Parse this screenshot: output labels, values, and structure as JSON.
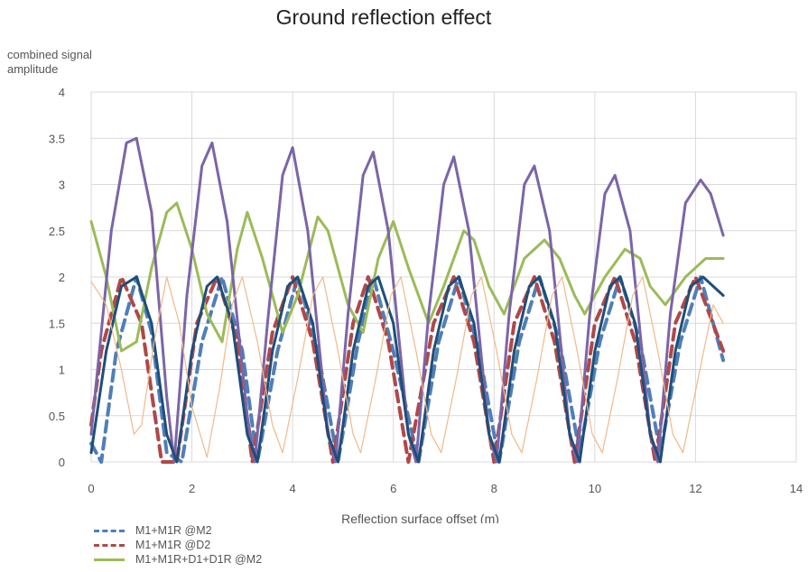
{
  "chart_data": {
    "type": "line",
    "title": "Ground reflection effect",
    "xlabel": "Reflection surface offset (m)",
    "ylabel": "combined signal amplitude",
    "xlim": [
      0,
      14
    ],
    "ylim": [
      0,
      4
    ],
    "xticks": [
      "0",
      "2",
      "4",
      "6",
      "8",
      "10",
      "12",
      "14"
    ],
    "yticks": [
      "0",
      "0.5",
      "1",
      "1.5",
      "2",
      "2.5",
      "3",
      "3.5",
      "4"
    ],
    "grid": true,
    "legend_position": "bottom-left",
    "series": [
      {
        "name": "M1+M1R @M2",
        "color": "#4f7fb8",
        "style": "dashed",
        "points": [
          [
            0.0,
            0.2
          ],
          [
            0.2,
            0.0
          ],
          [
            0.5,
            1.2
          ],
          [
            0.9,
            2.0
          ],
          [
            1.2,
            1.4
          ],
          [
            1.5,
            0.1
          ],
          [
            1.8,
            0.0
          ],
          [
            2.2,
            1.3
          ],
          [
            2.6,
            2.0
          ],
          [
            3.0,
            1.2
          ],
          [
            3.3,
            0.0
          ],
          [
            3.7,
            1.2
          ],
          [
            4.1,
            2.0
          ],
          [
            4.5,
            1.2
          ],
          [
            4.9,
            0.0
          ],
          [
            5.3,
            1.3
          ],
          [
            5.6,
            2.0
          ],
          [
            6.0,
            1.2
          ],
          [
            6.5,
            0.0
          ],
          [
            6.9,
            1.3
          ],
          [
            7.3,
            2.0
          ],
          [
            7.7,
            1.2
          ],
          [
            8.1,
            0.0
          ],
          [
            8.5,
            1.3
          ],
          [
            8.9,
            2.0
          ],
          [
            9.3,
            1.3
          ],
          [
            9.7,
            0.1
          ],
          [
            10.1,
            1.3
          ],
          [
            10.5,
            2.0
          ],
          [
            10.9,
            1.3
          ],
          [
            11.3,
            0.1
          ],
          [
            11.7,
            1.3
          ],
          [
            12.1,
            2.0
          ],
          [
            12.55,
            1.1
          ]
        ]
      },
      {
        "name": "M1+M1R @D2",
        "color": "#b04848",
        "style": "dashed",
        "points": [
          [
            0.0,
            0.4
          ],
          [
            0.2,
            1.2
          ],
          [
            0.6,
            2.0
          ],
          [
            1.0,
            1.5
          ],
          [
            1.4,
            0.0
          ],
          [
            1.7,
            0.0
          ],
          [
            2.1,
            1.5
          ],
          [
            2.5,
            2.0
          ],
          [
            2.9,
            1.3
          ],
          [
            3.2,
            0.0
          ],
          [
            3.6,
            1.4
          ],
          [
            4.0,
            2.0
          ],
          [
            4.4,
            1.3
          ],
          [
            4.8,
            0.0
          ],
          [
            5.2,
            1.5
          ],
          [
            5.5,
            2.0
          ],
          [
            5.9,
            1.3
          ],
          [
            6.3,
            0.0
          ],
          [
            6.8,
            1.5
          ],
          [
            7.2,
            2.0
          ],
          [
            7.6,
            1.3
          ],
          [
            8.0,
            0.0
          ],
          [
            8.4,
            1.5
          ],
          [
            8.8,
            2.0
          ],
          [
            9.2,
            1.3
          ],
          [
            9.6,
            0.0
          ],
          [
            10.0,
            1.5
          ],
          [
            10.4,
            2.0
          ],
          [
            10.8,
            1.3
          ],
          [
            11.2,
            0.0
          ],
          [
            11.6,
            1.5
          ],
          [
            12.0,
            2.0
          ],
          [
            12.55,
            1.2
          ]
        ]
      },
      {
        "name": "M1+M1R+D1+D1R @M2",
        "color": "#9bbb59",
        "style": "solid",
        "points": [
          [
            0.0,
            2.6
          ],
          [
            0.3,
            2.0
          ],
          [
            0.6,
            1.2
          ],
          [
            0.9,
            1.3
          ],
          [
            1.2,
            2.1
          ],
          [
            1.5,
            2.7
          ],
          [
            1.7,
            2.8
          ],
          [
            2.0,
            2.3
          ],
          [
            2.3,
            1.6
          ],
          [
            2.6,
            1.3
          ],
          [
            2.9,
            2.3
          ],
          [
            3.1,
            2.7
          ],
          [
            3.4,
            2.2
          ],
          [
            3.8,
            1.4
          ],
          [
            4.1,
            1.8
          ],
          [
            4.5,
            2.65
          ],
          [
            4.7,
            2.5
          ],
          [
            5.1,
            1.7
          ],
          [
            5.4,
            1.4
          ],
          [
            5.7,
            2.2
          ],
          [
            6.0,
            2.6
          ],
          [
            6.3,
            2.1
          ],
          [
            6.7,
            1.5
          ],
          [
            7.0,
            1.9
          ],
          [
            7.4,
            2.5
          ],
          [
            7.6,
            2.4
          ],
          [
            7.9,
            1.9
          ],
          [
            8.2,
            1.6
          ],
          [
            8.6,
            2.2
          ],
          [
            9.0,
            2.4
          ],
          [
            9.3,
            2.2
          ],
          [
            9.6,
            1.8
          ],
          [
            9.8,
            1.6
          ],
          [
            10.2,
            2.0
          ],
          [
            10.6,
            2.3
          ],
          [
            10.9,
            2.2
          ],
          [
            11.1,
            1.9
          ],
          [
            11.4,
            1.7
          ],
          [
            11.8,
            2.0
          ],
          [
            12.2,
            2.2
          ],
          [
            12.55,
            2.2
          ]
        ]
      },
      {
        "name": "",
        "color": "#7b65a8",
        "style": "solid",
        "points": [
          [
            0.0,
            0.3
          ],
          [
            0.4,
            2.5
          ],
          [
            0.7,
            3.45
          ],
          [
            0.9,
            3.5
          ],
          [
            1.2,
            2.7
          ],
          [
            1.5,
            0.7
          ],
          [
            1.65,
            0.0
          ],
          [
            1.9,
            1.8
          ],
          [
            2.2,
            3.2
          ],
          [
            2.4,
            3.45
          ],
          [
            2.7,
            2.6
          ],
          [
            3.1,
            0.5
          ],
          [
            3.25,
            0.0
          ],
          [
            3.5,
            1.5
          ],
          [
            3.8,
            3.1
          ],
          [
            4.0,
            3.4
          ],
          [
            4.3,
            2.5
          ],
          [
            4.7,
            0.3
          ],
          [
            4.85,
            0.0
          ],
          [
            5.1,
            1.6
          ],
          [
            5.4,
            3.1
          ],
          [
            5.6,
            3.35
          ],
          [
            5.9,
            2.5
          ],
          [
            6.3,
            0.3
          ],
          [
            6.45,
            0.0
          ],
          [
            6.7,
            1.6
          ],
          [
            7.0,
            3.0
          ],
          [
            7.2,
            3.3
          ],
          [
            7.5,
            2.5
          ],
          [
            7.9,
            0.3
          ],
          [
            8.05,
            0.0
          ],
          [
            8.3,
            1.6
          ],
          [
            8.6,
            3.0
          ],
          [
            8.8,
            3.2
          ],
          [
            9.1,
            2.5
          ],
          [
            9.5,
            0.3
          ],
          [
            9.65,
            0.0
          ],
          [
            9.9,
            1.6
          ],
          [
            10.2,
            2.9
          ],
          [
            10.4,
            3.1
          ],
          [
            10.7,
            2.5
          ],
          [
            11.1,
            0.3
          ],
          [
            11.25,
            0.0
          ],
          [
            11.5,
            1.6
          ],
          [
            11.8,
            2.8
          ],
          [
            12.1,
            3.05
          ],
          [
            12.3,
            2.9
          ],
          [
            12.55,
            2.45
          ]
        ]
      },
      {
        "name": "",
        "color": "#1f4e79",
        "style": "solid",
        "points": [
          [
            0.0,
            0.1
          ],
          [
            0.3,
            1.2
          ],
          [
            0.6,
            1.9
          ],
          [
            0.9,
            2.0
          ],
          [
            1.2,
            1.5
          ],
          [
            1.5,
            0.3
          ],
          [
            1.7,
            0.0
          ],
          [
            2.0,
            1.2
          ],
          [
            2.3,
            1.9
          ],
          [
            2.5,
            2.0
          ],
          [
            2.8,
            1.5
          ],
          [
            3.1,
            0.3
          ],
          [
            3.3,
            0.0
          ],
          [
            3.6,
            1.2
          ],
          [
            3.9,
            1.9
          ],
          [
            4.1,
            2.0
          ],
          [
            4.4,
            1.5
          ],
          [
            4.7,
            0.3
          ],
          [
            4.9,
            0.0
          ],
          [
            5.2,
            1.2
          ],
          [
            5.5,
            1.9
          ],
          [
            5.7,
            2.0
          ],
          [
            6.0,
            1.5
          ],
          [
            6.3,
            0.3
          ],
          [
            6.5,
            0.0
          ],
          [
            6.8,
            1.2
          ],
          [
            7.1,
            1.9
          ],
          [
            7.3,
            2.0
          ],
          [
            7.6,
            1.5
          ],
          [
            7.9,
            0.3
          ],
          [
            8.1,
            0.0
          ],
          [
            8.4,
            1.2
          ],
          [
            8.7,
            1.9
          ],
          [
            8.9,
            2.0
          ],
          [
            9.2,
            1.5
          ],
          [
            9.5,
            0.3
          ],
          [
            9.7,
            0.0
          ],
          [
            10.0,
            1.2
          ],
          [
            10.3,
            1.9
          ],
          [
            10.5,
            2.0
          ],
          [
            10.8,
            1.5
          ],
          [
            11.1,
            0.3
          ],
          [
            11.3,
            0.0
          ],
          [
            11.6,
            1.2
          ],
          [
            11.9,
            1.9
          ],
          [
            12.15,
            2.0
          ],
          [
            12.55,
            1.8
          ]
        ]
      },
      {
        "name": "",
        "color": "#f0b98a",
        "style": "thin",
        "points": [
          [
            0.0,
            1.95
          ],
          [
            0.3,
            1.7
          ],
          [
            0.6,
            1.0
          ],
          [
            0.85,
            0.3
          ],
          [
            1.0,
            0.4
          ],
          [
            1.25,
            1.3
          ],
          [
            1.5,
            2.0
          ],
          [
            1.75,
            1.5
          ],
          [
            2.0,
            0.6
          ],
          [
            2.3,
            0.05
          ],
          [
            2.55,
            0.8
          ],
          [
            2.8,
            1.7
          ],
          [
            3.0,
            2.0
          ],
          [
            3.3,
            1.3
          ],
          [
            3.6,
            0.4
          ],
          [
            3.8,
            0.1
          ],
          [
            4.1,
            0.9
          ],
          [
            4.4,
            1.8
          ],
          [
            4.6,
            2.0
          ],
          [
            4.9,
            1.2
          ],
          [
            5.2,
            0.3
          ],
          [
            5.35,
            0.1
          ],
          [
            5.65,
            0.9
          ],
          [
            5.95,
            1.8
          ],
          [
            6.15,
            2.0
          ],
          [
            6.45,
            1.2
          ],
          [
            6.75,
            0.3
          ],
          [
            6.95,
            0.1
          ],
          [
            7.25,
            0.9
          ],
          [
            7.55,
            1.8
          ],
          [
            7.75,
            2.0
          ],
          [
            8.05,
            1.2
          ],
          [
            8.35,
            0.3
          ],
          [
            8.55,
            0.1
          ],
          [
            8.85,
            0.9
          ],
          [
            9.15,
            1.8
          ],
          [
            9.35,
            2.0
          ],
          [
            9.65,
            1.2
          ],
          [
            9.95,
            0.3
          ],
          [
            10.15,
            0.1
          ],
          [
            10.45,
            0.9
          ],
          [
            10.75,
            1.8
          ],
          [
            10.95,
            2.0
          ],
          [
            11.25,
            1.2
          ],
          [
            11.55,
            0.3
          ],
          [
            11.75,
            0.1
          ],
          [
            12.05,
            0.9
          ],
          [
            12.35,
            1.7
          ],
          [
            12.55,
            1.5
          ]
        ]
      }
    ]
  }
}
